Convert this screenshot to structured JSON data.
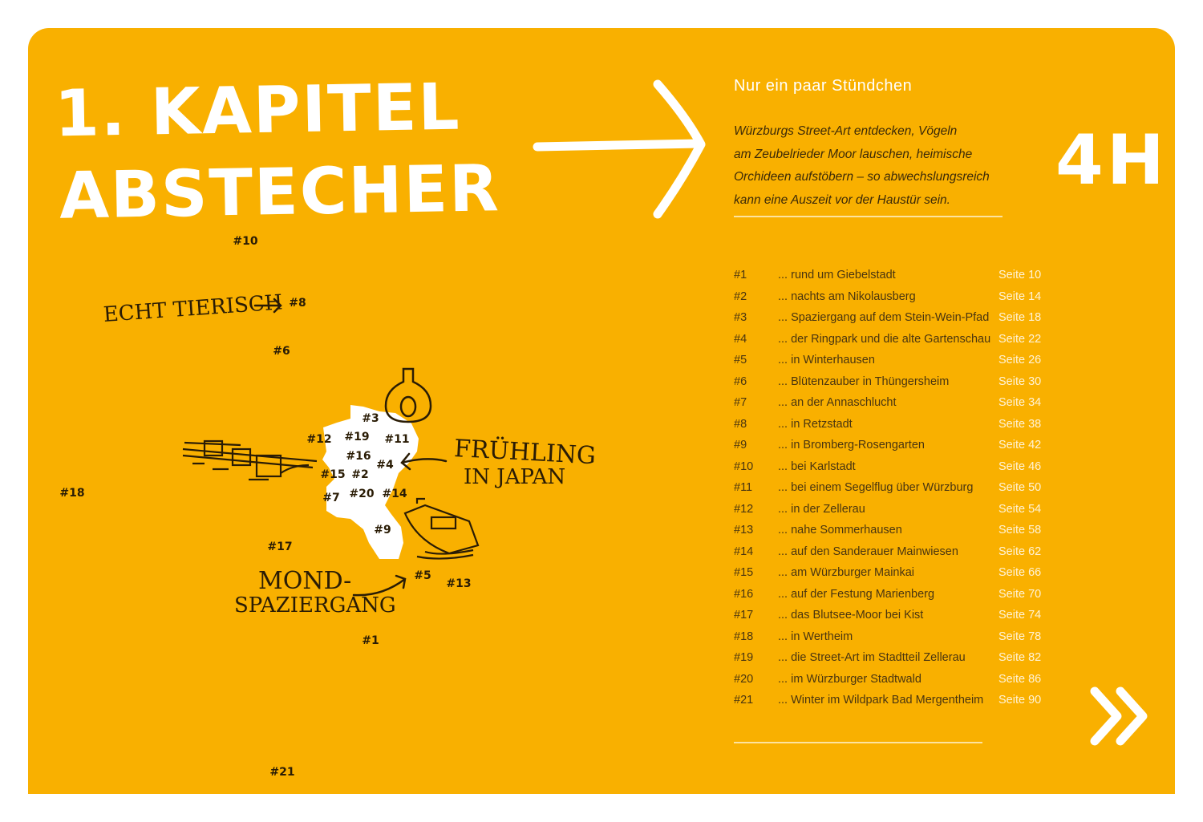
{
  "colors": {
    "background": "#f9b000",
    "text_dark": "#4a3510",
    "text_light": "#ffffff"
  },
  "chapter": {
    "line1": "1. KAPITEL",
    "line2": "ABSTECHER"
  },
  "subtitle": "Nur ein paar Stündchen",
  "intro": [
    "Würzburgs Street-Art entdecken, Vögeln",
    "am Zeubelrieder Moor lauschen, heimische",
    "Orchideen aufstöbern – so abwechslungsreich",
    "kann eine Auszeit vor der Haustür sein."
  ],
  "duration": "4H",
  "toc": [
    {
      "num": "#1",
      "title": "... rund um Giebelstadt",
      "page": "Seite 10"
    },
    {
      "num": "#2",
      "title": "... nachts am Nikolausberg",
      "page": "Seite 14"
    },
    {
      "num": "#3",
      "title": "... Spaziergang auf dem Stein-Wein-Pfad",
      "page": "Seite 18"
    },
    {
      "num": "#4",
      "title": "... der Ringpark und die alte Gartenschau",
      "page": "Seite 22"
    },
    {
      "num": "#5",
      "title": "... in Winterhausen",
      "page": "Seite 26"
    },
    {
      "num": "#6",
      "title": "... Blütenzauber in Thüngersheim",
      "page": "Seite 30"
    },
    {
      "num": "#7",
      "title": "... an der Annaschlucht",
      "page": "Seite 34"
    },
    {
      "num": "#8",
      "title": "... in Retzstadt",
      "page": "Seite 38"
    },
    {
      "num": "#9",
      "title": "... in Bromberg-Rosengarten",
      "page": "Seite 42"
    },
    {
      "num": "#10",
      "title": "... bei Karlstadt",
      "page": "Seite 46"
    },
    {
      "num": "#11",
      "title": "... bei einem Segelflug über Würzburg",
      "page": "Seite 50"
    },
    {
      "num": "#12",
      "title": "... in der Zellerau",
      "page": "Seite 54"
    },
    {
      "num": "#13",
      "title": "... nahe Sommerhausen",
      "page": "Seite 58"
    },
    {
      "num": "#14",
      "title": "... auf den Sanderauer Mainwiesen",
      "page": "Seite 62"
    },
    {
      "num": "#15",
      "title": "... am Würzburger Mainkai",
      "page": "Seite 66"
    },
    {
      "num": "#16",
      "title": "... auf der Festung Marienberg",
      "page": "Seite 70"
    },
    {
      "num": "#17",
      "title": "... das Blutsee-Moor bei Kist",
      "page": "Seite 74"
    },
    {
      "num": "#18",
      "title": "... in Wertheim",
      "page": "Seite 78"
    },
    {
      "num": "#19",
      "title": "... die Street-Art im Stadtteil Zellerau",
      "page": "Seite 82"
    },
    {
      "num": "#20",
      "title": "... im Würzburger Stadtwald",
      "page": "Seite 86"
    },
    {
      "num": "#21",
      "title": "... Winter im Wildpark Bad Mergentheim",
      "page": "Seite 90"
    }
  ],
  "map": {
    "pins": [
      "#1",
      "#2",
      "#3",
      "#4",
      "#5",
      "#6",
      "#7",
      "#8",
      "#9",
      "#10",
      "#11",
      "#12",
      "#13",
      "#14",
      "#15",
      "#16",
      "#17",
      "#18",
      "#19",
      "#20",
      "#21"
    ],
    "callouts": {
      "tierisch": "ECHT TIERISCH",
      "japan1": "FRÜHLING",
      "japan2": "IN JAPAN",
      "mond1": "MOND-",
      "mond2": "SPAZIERGANG"
    }
  },
  "icons": {
    "arrow": "arrow-right-icon",
    "next": "double-chevron-right-icon"
  }
}
